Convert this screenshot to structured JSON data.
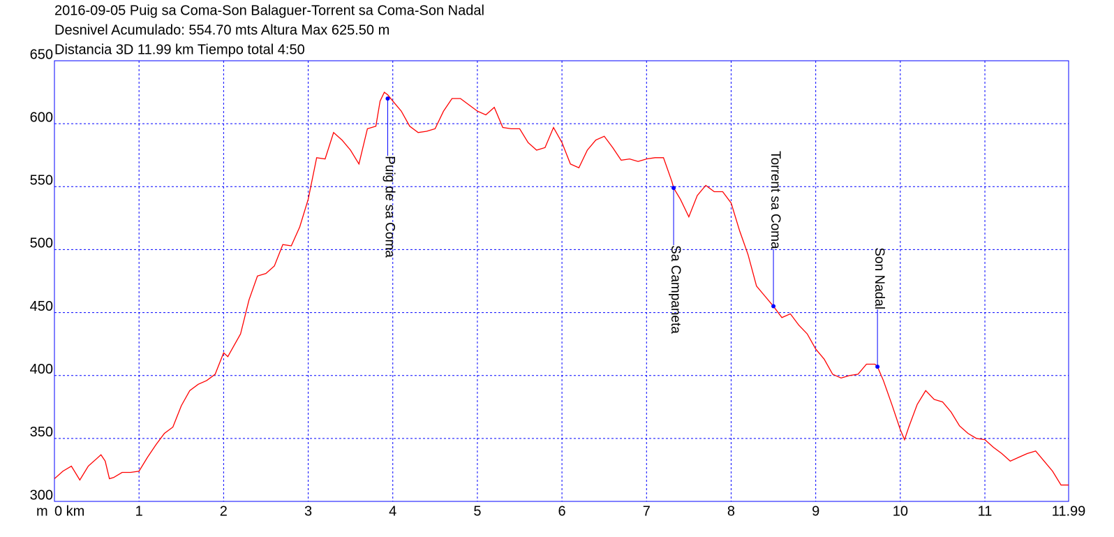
{
  "chart_data": {
    "type": "line",
    "title": "2016-09-05 Puig sa Coma-Son Balaguer-Torrent sa Coma-Son Nadal",
    "subtitle": [
      "Desnivel Acumulado: 554.70 mts  Altura Max 625.50 m",
      "Distancia 3D 11.99 km  Tiempo total 4:50"
    ],
    "y_label": "m",
    "color": "#ff0000",
    "grid": true,
    "xlim": [
      0,
      11.99
    ],
    "ylim": [
      300,
      650
    ],
    "xticks": [
      {
        "value": 0,
        "label": "0 km"
      },
      1,
      2,
      3,
      4,
      5,
      6,
      7,
      8,
      9,
      10,
      11,
      {
        "value": 11.99,
        "label": "11.99"
      }
    ],
    "yticks": [
      300,
      350,
      400,
      450,
      500,
      550,
      600,
      650
    ],
    "x": [
      0,
      0.1,
      0.2,
      0.3,
      0.4,
      0.5,
      0.55,
      0.6,
      0.65,
      0.7,
      0.8,
      0.9,
      1.0,
      1.1,
      1.2,
      1.3,
      1.4,
      1.5,
      1.6,
      1.7,
      1.8,
      1.9,
      2.0,
      2.05,
      2.1,
      2.2,
      2.3,
      2.4,
      2.5,
      2.6,
      2.7,
      2.8,
      2.9,
      3.0,
      3.1,
      3.2,
      3.3,
      3.4,
      3.5,
      3.6,
      3.7,
      3.8,
      3.85,
      3.9,
      3.94,
      4.0,
      4.1,
      4.2,
      4.3,
      4.4,
      4.5,
      4.6,
      4.7,
      4.8,
      4.9,
      5.0,
      5.1,
      5.2,
      5.3,
      5.4,
      5.5,
      5.6,
      5.7,
      5.8,
      5.9,
      6.0,
      6.1,
      6.2,
      6.3,
      6.4,
      6.5,
      6.6,
      6.7,
      6.8,
      6.9,
      7.0,
      7.1,
      7.2,
      7.3,
      7.32,
      7.4,
      7.5,
      7.6,
      7.7,
      7.8,
      7.9,
      8.0,
      8.1,
      8.2,
      8.3,
      8.4,
      8.5,
      8.6,
      8.7,
      8.8,
      8.9,
      9.0,
      9.1,
      9.2,
      9.3,
      9.4,
      9.5,
      9.6,
      9.7,
      9.73,
      9.8,
      9.9,
      10.0,
      10.05,
      10.1,
      10.2,
      10.3,
      10.4,
      10.5,
      10.6,
      10.7,
      10.8,
      10.9,
      11.0,
      11.1,
      11.2,
      11.3,
      11.4,
      11.5,
      11.6,
      11.7,
      11.8,
      11.9,
      11.99
    ],
    "values": [
      318,
      324,
      328,
      317,
      328,
      334,
      337,
      332,
      318,
      319,
      323,
      323,
      324,
      335,
      345,
      354,
      359,
      376,
      388,
      393,
      396,
      401,
      418,
      415,
      421,
      433,
      460,
      479,
      481,
      487,
      504,
      503,
      518,
      540,
      573,
      572,
      593,
      587,
      579,
      568,
      596,
      598,
      618,
      625,
      623,
      618,
      610,
      598,
      593,
      594,
      596,
      610,
      620,
      620,
      615,
      610,
      607,
      613,
      597,
      596,
      596,
      585,
      579,
      581,
      597,
      585,
      568,
      565,
      579,
      587,
      590,
      581,
      571,
      572,
      570,
      572,
      573,
      573,
      554,
      549,
      540,
      526,
      543,
      551,
      546,
      546,
      537,
      515,
      496,
      471,
      463,
      455,
      446,
      449,
      440,
      433,
      421,
      413,
      401,
      398,
      400,
      401,
      409,
      409,
      407,
      396,
      377,
      357,
      349,
      359,
      377,
      388,
      381,
      379,
      371,
      360,
      354,
      350,
      349,
      343,
      338,
      332,
      335,
      338,
      340,
      332,
      324,
      313,
      313
    ],
    "annotations": [
      {
        "label": "Puig de sa Coma",
        "x": 3.94,
        "y": 620
      },
      {
        "label": "Sa Campaneta",
        "x": 7.32,
        "y": 549
      },
      {
        "label": "Torrent sa Coma",
        "x": 8.5,
        "y": 455
      },
      {
        "label": "Son Nadal",
        "x": 9.73,
        "y": 407
      }
    ]
  }
}
